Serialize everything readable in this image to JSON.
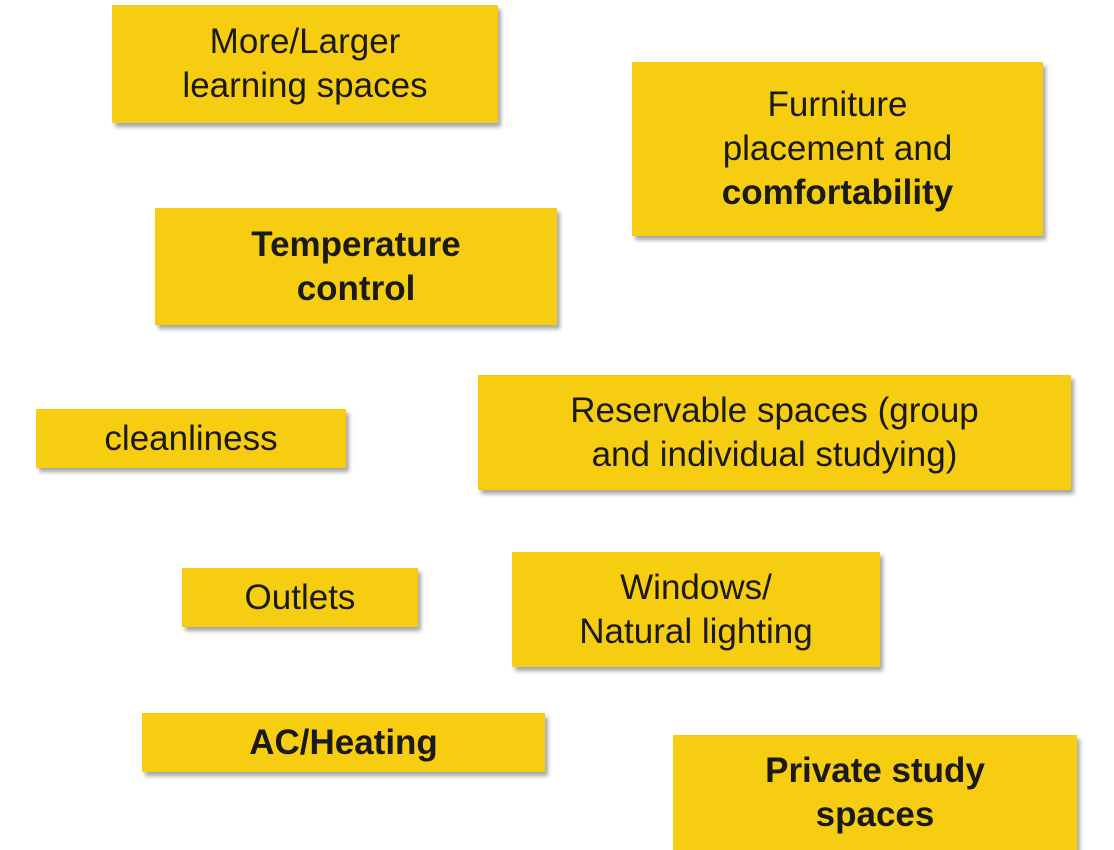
{
  "notes": [
    {
      "lines": [
        {
          "text": "More/Larger",
          "bold": false
        },
        {
          "text": "learning spaces",
          "bold": false
        }
      ]
    },
    {
      "lines": [
        {
          "text": "Furniture",
          "bold": false
        },
        {
          "text": "placement and",
          "bold": false
        },
        {
          "text": "comfortability",
          "bold": true
        }
      ]
    },
    {
      "lines": [
        {
          "text": "Temperature",
          "bold": true
        },
        {
          "text": "control",
          "bold": true
        }
      ]
    },
    {
      "lines": [
        {
          "text": "cleanliness",
          "bold": false
        }
      ]
    },
    {
      "lines": [
        {
          "text": "Reservable spaces (group",
          "bold": false
        },
        {
          "text": "and individual studying)",
          "bold": false
        }
      ]
    },
    {
      "lines": [
        {
          "text": "Outlets",
          "bold": false
        }
      ]
    },
    {
      "lines": [
        {
          "text": "Windows/",
          "bold": false
        },
        {
          "text": "Natural lighting",
          "bold": false
        }
      ]
    },
    {
      "lines": [
        {
          "text": "AC/Heating",
          "bold": true
        }
      ]
    },
    {
      "lines": [
        {
          "text": "Private study",
          "bold": true
        },
        {
          "text": "spaces",
          "bold": true
        }
      ]
    }
  ]
}
